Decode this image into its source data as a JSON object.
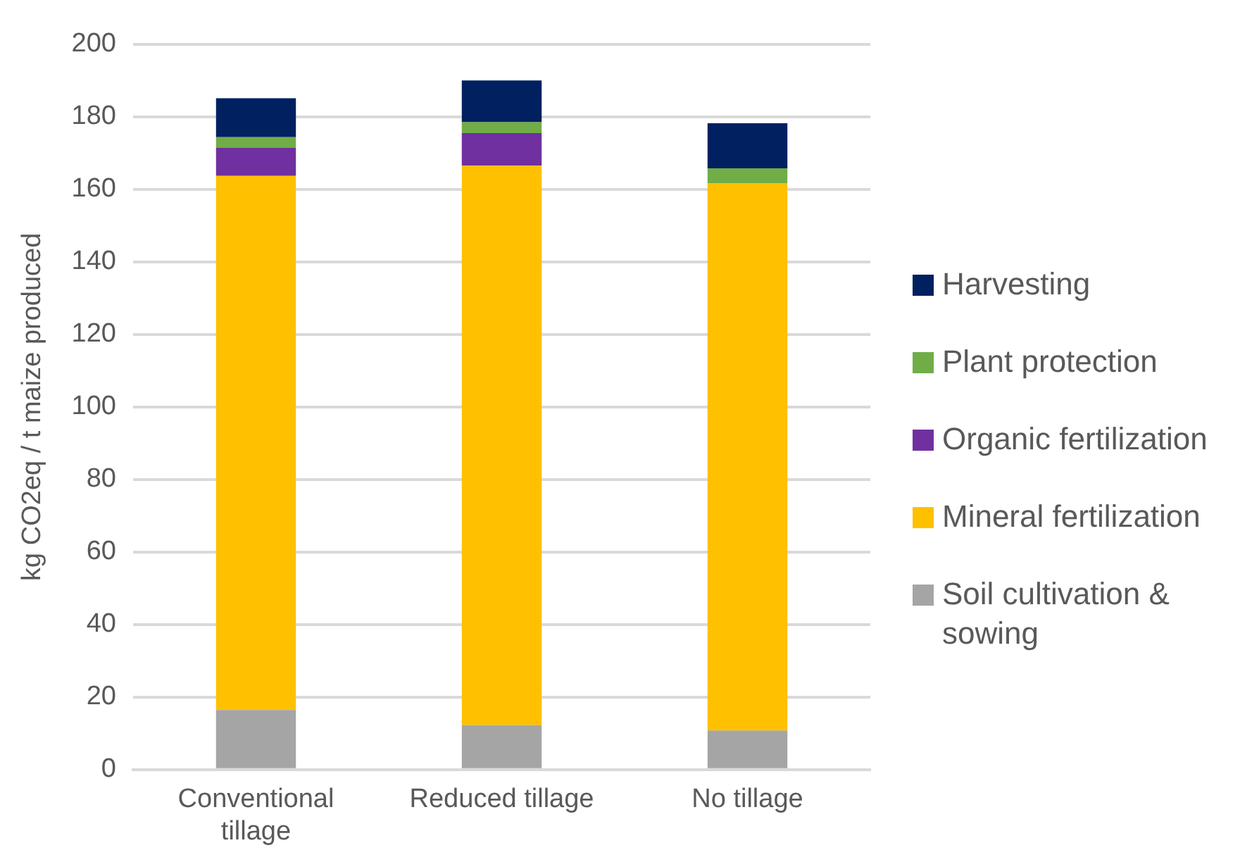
{
  "chart_data": {
    "type": "bar",
    "stacked": true,
    "ylabel": "kg CO2eq / t maize produced",
    "categories": [
      "Conventional tillage",
      "Reduced tillage",
      "No tillage"
    ],
    "series": [
      {
        "name": "Soil cultivation & sowing",
        "color": "#a5a5a5",
        "values": [
          16.4,
          12.3,
          10.8
        ]
      },
      {
        "name": "Mineral fertilization",
        "color": "#ffc000",
        "values": [
          147.3,
          154.2,
          150.9
        ]
      },
      {
        "name": "Organic fertilization",
        "color": "#7030a0",
        "values": [
          7.7,
          9,
          0
        ]
      },
      {
        "name": "Plant protection",
        "color": "#70ad47",
        "values": [
          3,
          3,
          4.1
        ]
      },
      {
        "name": "Harvesting",
        "color": "#002060",
        "values": [
          10.7,
          11.5,
          12.4
        ]
      }
    ],
    "ylim": [
      0,
      200
    ],
    "yticks": [
      0,
      20,
      40,
      60,
      80,
      100,
      120,
      140,
      160,
      180,
      200
    ],
    "grid": "y",
    "legend": "right"
  }
}
